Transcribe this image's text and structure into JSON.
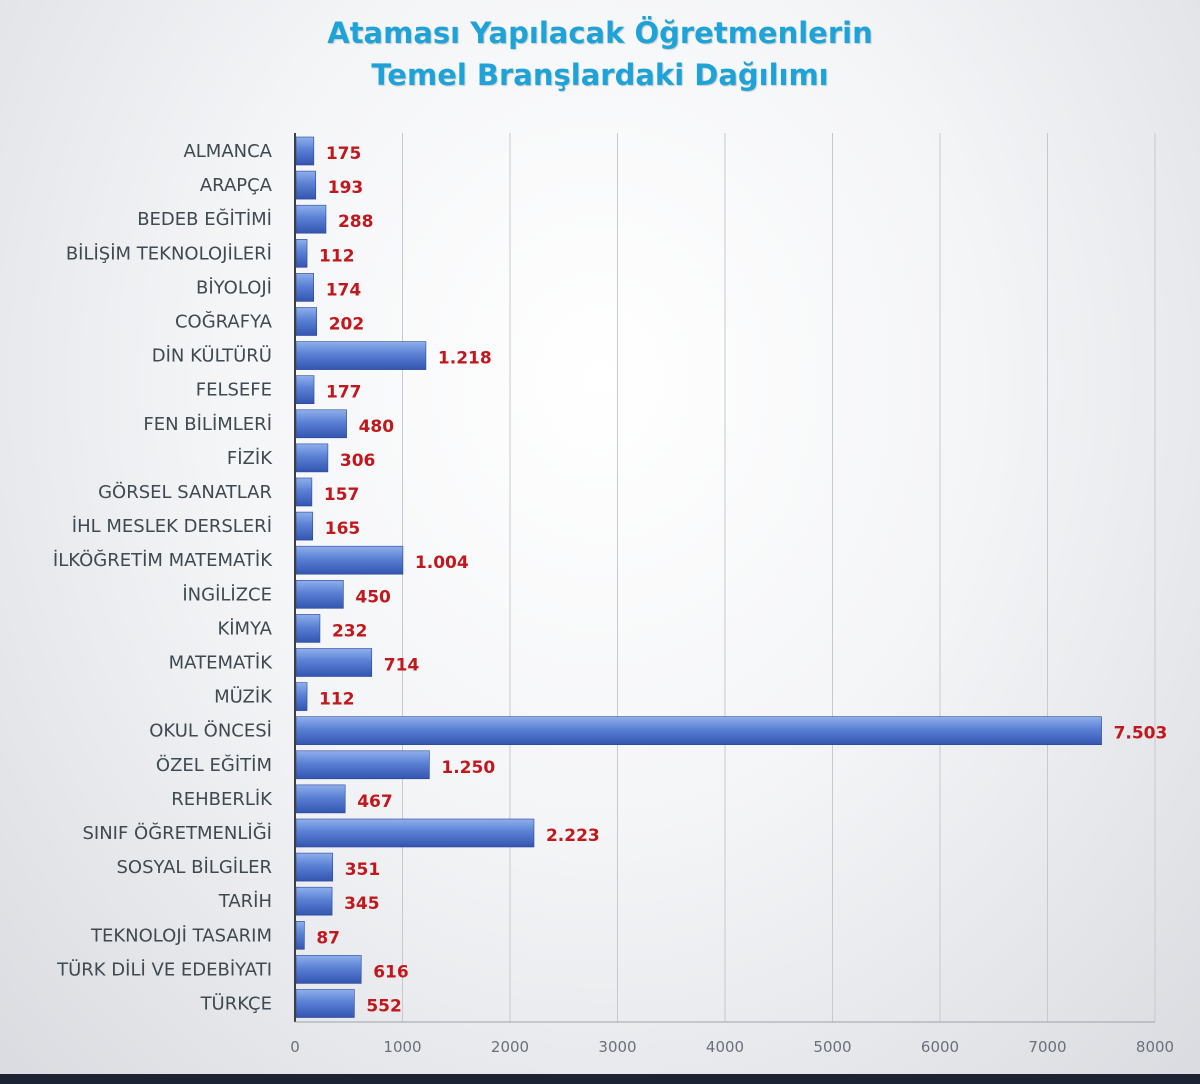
{
  "chart_data": {
    "type": "bar",
    "orientation": "horizontal",
    "title_lines": [
      "Ataması Yapılacak Öğretmenlerin",
      "Temel Branşlardaki Dağılımı"
    ],
    "categories": [
      "ALMANCA",
      "ARAPÇA",
      "BEDEB EĞİTİMİ",
      "BİLİŞİM TEKNOLOJİLERİ",
      "BİYOLOJİ",
      "COĞRAFYA",
      "DİN KÜLTÜRÜ",
      "FELSEFE",
      "FEN BİLİMLERİ",
      "FİZİK",
      "GÖRSEL SANATLAR",
      "İHL MESLEK DERSLERİ",
      "İLKÖĞRETİM MATEMATİK",
      "İNGİLİZCE",
      "KİMYA",
      "MATEMATİK",
      "MÜZİK",
      "OKUL ÖNCESİ",
      "ÖZEL EĞİTİM",
      "REHBERLİK",
      "SINIF ÖĞRETMENLİĞİ",
      "SOSYAL BİLGİLER",
      "TARİH",
      "TEKNOLOJİ TASARIM",
      "TÜRK DİLİ VE EDEBİYATI",
      "TÜRKÇE"
    ],
    "values": [
      175,
      193,
      288,
      112,
      174,
      202,
      1218,
      177,
      480,
      306,
      157,
      165,
      1004,
      450,
      232,
      714,
      112,
      7503,
      1250,
      467,
      2223,
      351,
      345,
      87,
      616,
      552
    ],
    "value_labels": [
      "175",
      "193",
      "288",
      "112",
      "174",
      "202",
      "1.218",
      "177",
      "480",
      "306",
      "157",
      "165",
      "1.004",
      "450",
      "232",
      "714",
      "112",
      "7.503",
      "1.250",
      "467",
      "2.223",
      "351",
      "345",
      "87",
      "616",
      "552"
    ],
    "xlim": [
      0,
      8000
    ],
    "x_ticks": [
      0,
      1000,
      2000,
      3000,
      4000,
      5000,
      6000,
      7000,
      8000
    ],
    "x_tick_labels": [
      "0",
      "1000",
      "2000",
      "3000",
      "4000",
      "5000",
      "6000",
      "7000",
      "8000"
    ],
    "grid": true,
    "colors": {
      "bar_light": "#8fb0ec",
      "bar_dark": "#3355b0",
      "value_label": "#c0181c",
      "grid": "#c6c9cf",
      "title": "#1ea3d8"
    }
  }
}
